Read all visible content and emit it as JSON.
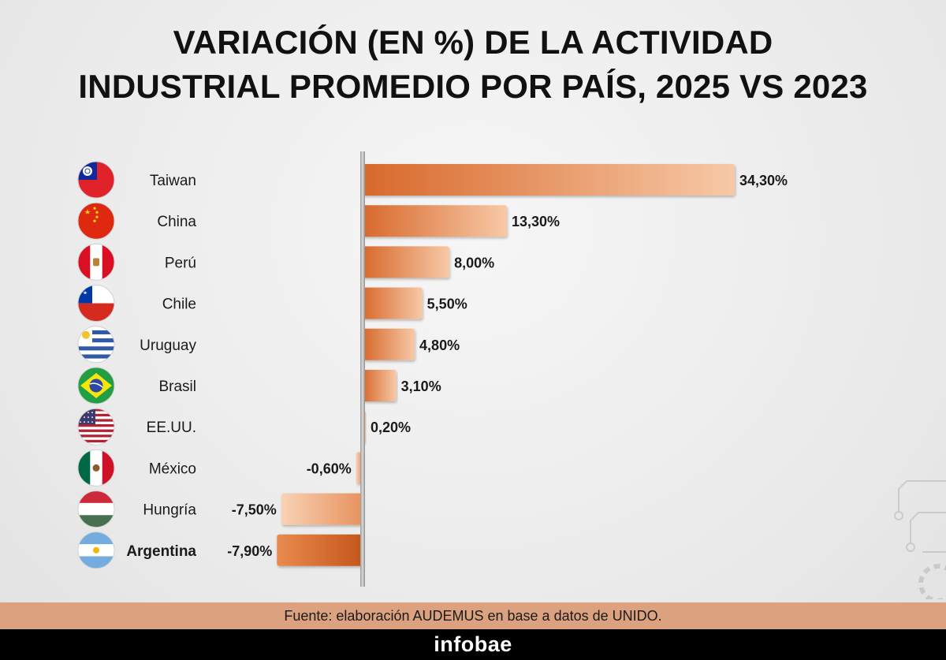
{
  "title_line1": "VARIACIÓN (EN %) DE LA ACTIVIDAD",
  "title_line2": "INDUSTRIAL PROMEDIO POR PAÍS, 2025 VS 2023",
  "source": "Fuente: elaboración AUDEMUS en base a datos de UNIDO.",
  "brand": "infobae",
  "chart_data": {
    "type": "bar",
    "orientation": "horizontal",
    "title": "VARIACIÓN (EN %) DE LA ACTIVIDAD INDUSTRIAL PROMEDIO POR PAÍS, 2025 VS 2023",
    "categories": [
      "Taiwan",
      "China",
      "Perú",
      "Chile",
      "Uruguay",
      "Brasil",
      "EE.UU.",
      "México",
      "Hungría",
      "Argentina"
    ],
    "values": [
      34.3,
      13.3,
      8.0,
      5.5,
      4.8,
      3.1,
      0.2,
      -0.6,
      -7.5,
      -7.9
    ],
    "value_labels": [
      "34,30%",
      "13,30%",
      "8,00%",
      "5,50%",
      "4,80%",
      "3,10%",
      "0,20%",
      "-0,60%",
      "-7,50%",
      "-7,90%"
    ],
    "flags": [
      "taiwan-flag-icon",
      "china-flag-icon",
      "peru-flag-icon",
      "chile-flag-icon",
      "uruguay-flag-icon",
      "brazil-flag-icon",
      "usa-flag-icon",
      "mexico-flag-icon",
      "hungary-flag-icon",
      "argentina-flag-icon"
    ],
    "highlight": "Argentina",
    "xlim": [
      -7.9,
      34.3
    ],
    "grid": false,
    "colors": {
      "bar": "#e0793f",
      "bar_light": "#f7c8a6",
      "highlight": "#cf5e20",
      "axis": "#777777"
    }
  }
}
